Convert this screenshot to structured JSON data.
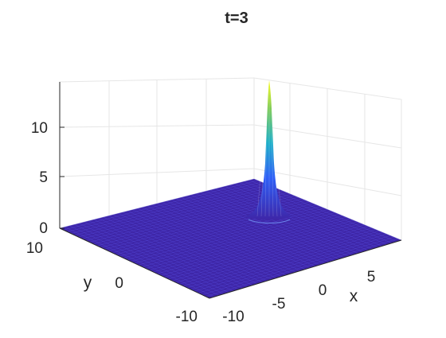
{
  "chart_data": {
    "type": "surface",
    "title": "t=3",
    "xlabel": "x",
    "ylabel": "y",
    "zlabel": "",
    "xlim": [
      -10,
      10
    ],
    "ylim": [
      -10,
      10
    ],
    "zlim": [
      0,
      14
    ],
    "x_ticks": [
      "-10",
      "-5",
      "0",
      "5"
    ],
    "y_ticks": [
      "-10",
      "0",
      "10"
    ],
    "z_ticks": [
      "0",
      "5",
      "10"
    ],
    "grid": true,
    "colormap": "parula",
    "surface_color": "#3e26a8",
    "peak": {
      "x": 5,
      "y": 2,
      "height": 13.5
    }
  }
}
